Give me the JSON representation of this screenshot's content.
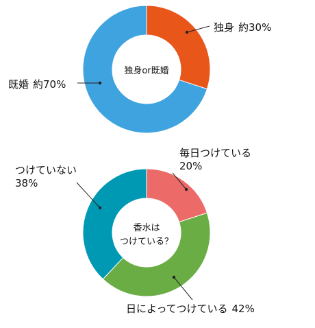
{
  "chart_data": [
    {
      "type": "pie",
      "center_label": "独身or既婚",
      "slices": [
        {
          "label": "独身",
          "value_text": "約30%",
          "value": 30,
          "color": "#e8561a"
        },
        {
          "label": "既婚",
          "value_text": "約70%",
          "value": 70,
          "color": "#3ea3de"
        }
      ]
    },
    {
      "type": "pie",
      "center_label": [
        "香水は",
        "つけている？"
      ],
      "slices": [
        {
          "label": "毎日つけている",
          "value_text": "20%",
          "value": 20,
          "color": "#ec6b68"
        },
        {
          "label": "日によってつけている",
          "value_text": "42%",
          "value": 42,
          "color": "#6aad44"
        },
        {
          "label": "つけていない",
          "value_text": "38%",
          "value": 38,
          "color": "#0099b3"
        }
      ]
    }
  ]
}
